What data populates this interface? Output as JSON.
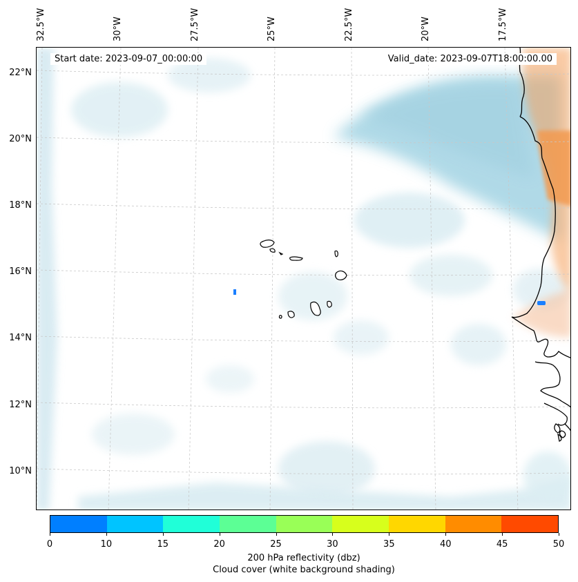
{
  "map": {
    "start_date": "Start date: 2023-09-07_00:00:00",
    "valid_date": "Valid_date: 2023-09-07T18:00:00.00",
    "lon_labels": [
      "32.5°W",
      "30°W",
      "27.5°W",
      "25°W",
      "22.5°W",
      "20°W",
      "17.5°W"
    ],
    "lat_labels": [
      "22°N",
      "20°N",
      "18°N",
      "16°N",
      "14°N",
      "12°N",
      "10°N"
    ]
  },
  "colorbar": {
    "colors": [
      "#007fff",
      "#00c4ff",
      "#20ffd8",
      "#5cff95",
      "#99ff57",
      "#d7ff1c",
      "#ffd700",
      "#ff8c00",
      "#ff4a00"
    ],
    "ticks": [
      "0",
      "10",
      "15",
      "20",
      "25",
      "30",
      "35",
      "40",
      "45",
      "50"
    ],
    "label_line1": "200 hPa reflectivity (dbz)",
    "label_line2": "Cloud cover (white background shading)"
  }
}
